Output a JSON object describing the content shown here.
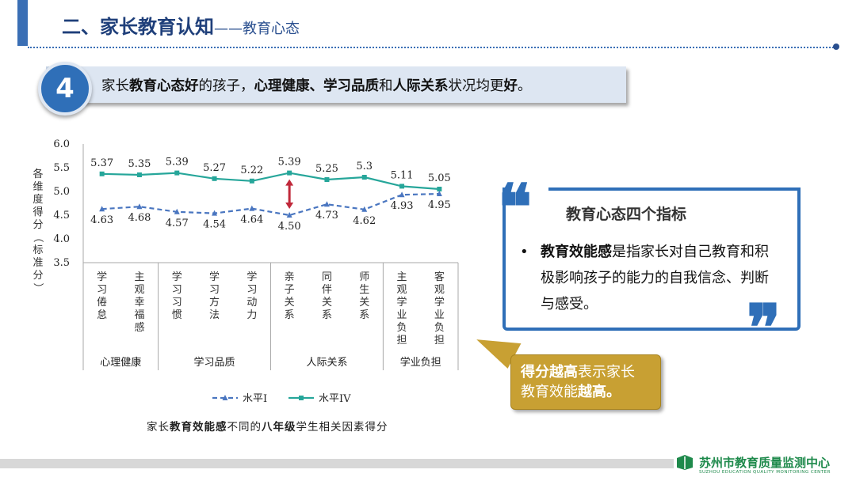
{
  "header": {
    "title": "二、家长教育认知",
    "subtitle": "——教育心态"
  },
  "banner": {
    "number": "4",
    "segments": [
      {
        "text": "家长",
        "bold": false
      },
      {
        "text": "教育心态好",
        "bold": true
      },
      {
        "text": "的孩子，",
        "bold": false
      },
      {
        "text": "心理健康、学习品质",
        "bold": true
      },
      {
        "text": "和",
        "bold": false
      },
      {
        "text": "人际关系",
        "bold": true
      },
      {
        "text": "状况均更",
        "bold": false
      },
      {
        "text": "好",
        "bold": true
      },
      {
        "text": "。",
        "bold": false
      }
    ]
  },
  "chart_data": {
    "type": "line",
    "ylabel": "各维度得分（标准分）",
    "ylim": [
      3.5,
      6.0
    ],
    "yticks": [
      "6.0",
      "5.5",
      "5.0",
      "4.5",
      "4.0",
      "3.5"
    ],
    "categories": [
      "学习倦怠",
      "主观幸福感",
      "学习习惯",
      "学习方法",
      "学习动力",
      "亲子关系",
      "同伴关系",
      "师生关系",
      "主观学业负担",
      "客观学业负担"
    ],
    "groups": [
      {
        "label": "心理健康",
        "count": 2
      },
      {
        "label": "学习品质",
        "count": 3
      },
      {
        "label": "人际关系",
        "count": 3
      },
      {
        "label": "学业负担",
        "count": 2
      }
    ],
    "series": [
      {
        "name": "水平IV",
        "values": [
          5.37,
          5.35,
          5.39,
          5.27,
          5.22,
          5.39,
          5.25,
          5.3,
          5.11,
          5.05
        ],
        "labels": [
          "5.37",
          "5.35",
          "5.39",
          "5.27",
          "5.22",
          "5.39",
          "5.25",
          "5.3",
          "5.11",
          "5.05"
        ],
        "color": "#26a69a"
      },
      {
        "name": "水平I",
        "values": [
          4.63,
          4.68,
          4.57,
          4.54,
          4.64,
          4.5,
          4.73,
          4.62,
          4.93,
          4.95
        ],
        "labels": [
          "4.63",
          "4.68",
          "4.57",
          "4.54",
          "4.64",
          "4.50",
          "4.73",
          "4.62",
          "4.93",
          "4.95"
        ],
        "color": "#4a76c0"
      }
    ],
    "legend_position": "bottom",
    "caption_segments": [
      {
        "text": "家长",
        "bold": false
      },
      {
        "text": "教育效能感",
        "bold": true
      },
      {
        "text": "不同的",
        "bold": false
      },
      {
        "text": "八年级",
        "bold": true
      },
      {
        "text": "学生相关因素得分",
        "bold": false
      }
    ]
  },
  "indicator_box": {
    "heading": "教育心态四个指标",
    "bullet": "•",
    "term": "教育效能感",
    "definition": "是指家长对自己教育和积极影响孩子的能力的自我信念、判断与感受。"
  },
  "callout": {
    "part1": "得分越高",
    "part2": "表示家长",
    "part3": "教育效能",
    "part4": "越高。"
  },
  "footer": {
    "org_name": "苏州市教育质量监测中心",
    "org_en": "SUZHOU EDUCATION QUALITY MONITORING CENTER"
  },
  "colors": {
    "brand_blue": "#2f6fb8",
    "title_blue": "#1f3f7a",
    "callout_gold": "#c8a033",
    "arrow_red": "#c0283a",
    "footer_green": "#1f8a4c"
  }
}
